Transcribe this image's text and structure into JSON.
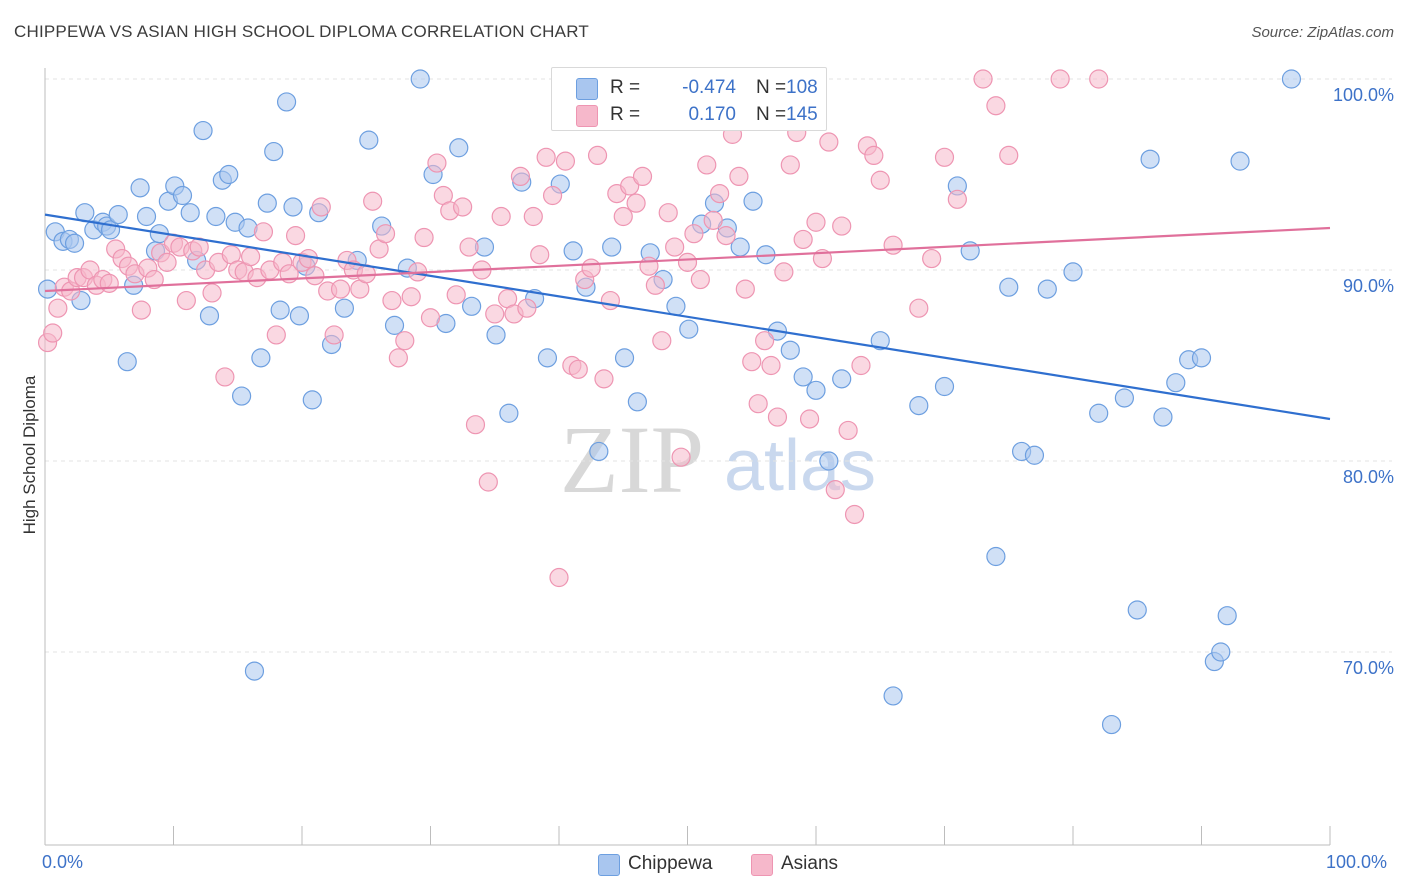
{
  "title": "CHIPPEWA VS ASIAN HIGH SCHOOL DIPLOMA CORRELATION CHART",
  "source": "Source: ZipAtlas.com",
  "watermark": {
    "zip": "ZIP",
    "atlas": "atlas"
  },
  "colors": {
    "chippewa_fill": "#a9c6ef",
    "chippewa_stroke": "#6d9fe0",
    "chippewa_line": "#2f6fcf",
    "asians_fill": "#f6b8cb",
    "asians_stroke": "#ee95b2",
    "asians_line": "#e0709b",
    "axis_label": "#3d72c8",
    "grid": "#e3e3e3"
  },
  "legend_top": [
    {
      "r_label": "R =",
      "r_value": "-0.474",
      "n_label": "N =",
      "n_value": "108"
    },
    {
      "r_label": "R =",
      "r_value": "0.170",
      "n_label": "N =",
      "n_value": "145"
    }
  ],
  "legend_bottom": [
    "Chippewa",
    "Asians"
  ],
  "chart_data": {
    "type": "scatter",
    "title": "CHIPPEWA VS ASIAN HIGH SCHOOL DIPLOMA CORRELATION CHART",
    "xlabel": "",
    "ylabel": "High School Diploma",
    "xlim": [
      0,
      100
    ],
    "ylim": [
      60,
      102
    ],
    "x_tick_labels": [
      "0.0%",
      "100.0%"
    ],
    "y_ticks": [
      70,
      80,
      90,
      100
    ],
    "y_tick_labels": [
      "70.0%",
      "80.0%",
      "90.0%",
      "100.0%"
    ],
    "grid": true,
    "legend_placement": "top-center",
    "series": [
      {
        "name": "Chippewa",
        "r": -0.474,
        "n": 108,
        "trend": {
          "x": [
            0,
            100
          ],
          "y": [
            92.9,
            82.2
          ]
        },
        "points": [
          [
            0.2,
            89
          ],
          [
            0.8,
            92
          ],
          [
            1.4,
            91.5
          ],
          [
            1.9,
            91.6
          ],
          [
            2.3,
            91.4
          ],
          [
            2.8,
            88.4
          ],
          [
            3.1,
            93
          ],
          [
            3.8,
            92.1
          ],
          [
            4.5,
            92.5
          ],
          [
            4.8,
            92.3
          ],
          [
            5.1,
            92.1
          ],
          [
            5.7,
            92.9
          ],
          [
            6.4,
            85.2
          ],
          [
            6.9,
            89.2
          ],
          [
            7.4,
            94.3
          ],
          [
            7.9,
            92.8
          ],
          [
            8.6,
            91.0
          ],
          [
            8.9,
            91.9
          ],
          [
            9.6,
            93.6
          ],
          [
            10.1,
            94.4
          ],
          [
            10.7,
            93.9
          ],
          [
            11.3,
            93.0
          ],
          [
            11.8,
            90.5
          ],
          [
            12.3,
            97.3
          ],
          [
            12.8,
            87.6
          ],
          [
            13.3,
            92.8
          ],
          [
            13.8,
            94.7
          ],
          [
            14.3,
            95.0
          ],
          [
            14.8,
            92.5
          ],
          [
            15.3,
            83.4
          ],
          [
            15.8,
            92.2
          ],
          [
            16.3,
            69.0
          ],
          [
            16.8,
            85.4
          ],
          [
            17.3,
            93.5
          ],
          [
            17.8,
            96.2
          ],
          [
            18.3,
            87.9
          ],
          [
            18.8,
            98.8
          ],
          [
            19.3,
            93.3
          ],
          [
            19.8,
            87.6
          ],
          [
            20.3,
            90.2
          ],
          [
            20.8,
            83.2
          ],
          [
            21.3,
            93.0
          ],
          [
            22.3,
            86.1
          ],
          [
            23.3,
            88.0
          ],
          [
            24.3,
            90.5
          ],
          [
            25.2,
            96.8
          ],
          [
            26.2,
            92.3
          ],
          [
            27.2,
            87.1
          ],
          [
            28.2,
            90.1
          ],
          [
            29.2,
            100.0
          ],
          [
            30.2,
            95.0
          ],
          [
            31.2,
            87.2
          ],
          [
            32.2,
            96.4
          ],
          [
            33.2,
            88.1
          ],
          [
            34.2,
            91.2
          ],
          [
            35.1,
            86.6
          ],
          [
            36.1,
            82.5
          ],
          [
            37.1,
            94.6
          ],
          [
            38.1,
            88.5
          ],
          [
            39.1,
            85.4
          ],
          [
            40.1,
            94.5
          ],
          [
            41.1,
            91.0
          ],
          [
            42.1,
            89.1
          ],
          [
            43.1,
            80.5
          ],
          [
            44.1,
            91.2
          ],
          [
            45.1,
            85.4
          ],
          [
            46.1,
            83.1
          ],
          [
            47.1,
            90.9
          ],
          [
            48.1,
            89.5
          ],
          [
            49.1,
            88.1
          ],
          [
            50.1,
            86.9
          ],
          [
            51.1,
            92.4
          ],
          [
            52.1,
            93.5
          ],
          [
            53.1,
            92.2
          ],
          [
            54.1,
            91.2
          ],
          [
            55.1,
            93.6
          ],
          [
            56.1,
            90.8
          ],
          [
            57.0,
            86.8
          ],
          [
            58.0,
            85.8
          ],
          [
            59.0,
            84.4
          ],
          [
            60.0,
            83.7
          ],
          [
            61.0,
            80.0
          ],
          [
            62.0,
            84.3
          ],
          [
            65.0,
            86.3
          ],
          [
            66.0,
            67.7
          ],
          [
            68.0,
            82.9
          ],
          [
            70.0,
            83.9
          ],
          [
            71.0,
            94.4
          ],
          [
            72.0,
            91.0
          ],
          [
            74.0,
            75.0
          ],
          [
            75.0,
            89.1
          ],
          [
            76.0,
            80.5
          ],
          [
            77.0,
            80.3
          ],
          [
            78.0,
            89.0
          ],
          [
            80.0,
            89.9
          ],
          [
            82.0,
            82.5
          ],
          [
            83.0,
            66.2
          ],
          [
            84.0,
            83.3
          ],
          [
            85.0,
            72.2
          ],
          [
            86.0,
            95.8
          ],
          [
            87.0,
            82.3
          ],
          [
            88.0,
            84.1
          ],
          [
            89.0,
            85.3
          ],
          [
            90.0,
            85.4
          ],
          [
            91.0,
            69.5
          ],
          [
            91.5,
            70.0
          ],
          [
            92.0,
            71.9
          ],
          [
            93.0,
            95.7
          ],
          [
            97.0,
            100.0
          ]
        ]
      },
      {
        "name": "Asians",
        "r": 0.17,
        "n": 145,
        "trend": {
          "x": [
            0,
            100
          ],
          "y": [
            88.9,
            92.2
          ]
        },
        "points": [
          [
            0.2,
            86.2
          ],
          [
            0.6,
            86.7
          ],
          [
            1.0,
            88.0
          ],
          [
            1.5,
            89.1
          ],
          [
            2.0,
            88.9
          ],
          [
            2.5,
            89.6
          ],
          [
            3.0,
            89.6
          ],
          [
            3.5,
            90.0
          ],
          [
            4.0,
            89.2
          ],
          [
            4.5,
            89.5
          ],
          [
            5.0,
            89.3
          ],
          [
            5.5,
            91.1
          ],
          [
            6.0,
            90.6
          ],
          [
            6.5,
            90.2
          ],
          [
            7.0,
            89.8
          ],
          [
            7.5,
            87.9
          ],
          [
            8.0,
            90.1
          ],
          [
            8.5,
            89.5
          ],
          [
            9.0,
            90.9
          ],
          [
            9.5,
            90.4
          ],
          [
            10.0,
            91.4
          ],
          [
            10.5,
            91.2
          ],
          [
            11.0,
            88.4
          ],
          [
            11.5,
            91.0
          ],
          [
            12.0,
            91.2
          ],
          [
            12.5,
            90.0
          ],
          [
            13.0,
            88.8
          ],
          [
            13.5,
            90.4
          ],
          [
            14.0,
            84.4
          ],
          [
            14.5,
            90.8
          ],
          [
            15.0,
            90.0
          ],
          [
            15.5,
            89.9
          ],
          [
            16.0,
            90.7
          ],
          [
            16.5,
            89.6
          ],
          [
            17.0,
            92.0
          ],
          [
            17.5,
            90.0
          ],
          [
            18.0,
            86.6
          ],
          [
            18.5,
            90.4
          ],
          [
            19.0,
            89.8
          ],
          [
            19.5,
            91.8
          ],
          [
            20.0,
            90.4
          ],
          [
            20.5,
            90.6
          ],
          [
            21.0,
            89.7
          ],
          [
            21.5,
            93.3
          ],
          [
            22.0,
            88.9
          ],
          [
            22.5,
            86.6
          ],
          [
            23.0,
            89.0
          ],
          [
            23.5,
            90.5
          ],
          [
            24.0,
            90.0
          ],
          [
            24.5,
            89.0
          ],
          [
            25.0,
            89.8
          ],
          [
            25.5,
            93.6
          ],
          [
            26.0,
            91.1
          ],
          [
            26.5,
            91.9
          ],
          [
            27.0,
            88.4
          ],
          [
            27.5,
            85.4
          ],
          [
            28.0,
            86.3
          ],
          [
            28.5,
            88.6
          ],
          [
            29.0,
            89.9
          ],
          [
            29.5,
            91.7
          ],
          [
            30.0,
            87.5
          ],
          [
            30.5,
            95.6
          ],
          [
            31.0,
            93.9
          ],
          [
            31.5,
            93.1
          ],
          [
            32.0,
            88.7
          ],
          [
            32.5,
            93.3
          ],
          [
            33.0,
            91.2
          ],
          [
            33.5,
            81.9
          ],
          [
            34.0,
            90.0
          ],
          [
            34.5,
            78.9
          ],
          [
            35.0,
            87.7
          ],
          [
            35.5,
            92.8
          ],
          [
            36.0,
            88.5
          ],
          [
            36.5,
            87.7
          ],
          [
            37.0,
            94.9
          ],
          [
            37.5,
            88.0
          ],
          [
            38.0,
            92.8
          ],
          [
            38.5,
            90.8
          ],
          [
            39.0,
            95.9
          ],
          [
            39.5,
            93.9
          ],
          [
            40.0,
            73.9
          ],
          [
            40.5,
            95.7
          ],
          [
            41.0,
            85.0
          ],
          [
            41.5,
            84.8
          ],
          [
            42.0,
            89.5
          ],
          [
            42.5,
            90.1
          ],
          [
            43.0,
            96.0
          ],
          [
            43.5,
            84.3
          ],
          [
            44.0,
            88.4
          ],
          [
            44.5,
            94.0
          ],
          [
            45.0,
            92.8
          ],
          [
            45.5,
            94.4
          ],
          [
            46.0,
            93.5
          ],
          [
            46.5,
            94.9
          ],
          [
            47.0,
            90.2
          ],
          [
            47.5,
            89.2
          ],
          [
            48.0,
            86.3
          ],
          [
            48.5,
            93.0
          ],
          [
            49.0,
            91.2
          ],
          [
            49.5,
            80.2
          ],
          [
            50.0,
            90.4
          ],
          [
            50.5,
            91.9
          ],
          [
            51.0,
            89.5
          ],
          [
            51.5,
            95.5
          ],
          [
            52.0,
            92.6
          ],
          [
            52.5,
            94.0
          ],
          [
            53.0,
            91.8
          ],
          [
            53.5,
            97.1
          ],
          [
            54.0,
            94.9
          ],
          [
            54.5,
            89.0
          ],
          [
            55.0,
            85.2
          ],
          [
            55.5,
            83.0
          ],
          [
            56.0,
            86.3
          ],
          [
            56.5,
            85.0
          ],
          [
            57.0,
            82.3
          ],
          [
            57.5,
            89.9
          ],
          [
            58.0,
            95.5
          ],
          [
            58.5,
            97.2
          ],
          [
            59.0,
            91.6
          ],
          [
            59.5,
            82.2
          ],
          [
            60.0,
            92.5
          ],
          [
            60.5,
            90.6
          ],
          [
            61.0,
            96.7
          ],
          [
            61.5,
            78.5
          ],
          [
            62.0,
            92.3
          ],
          [
            62.5,
            81.6
          ],
          [
            63.0,
            77.2
          ],
          [
            63.5,
            85.0
          ],
          [
            64.0,
            96.5
          ],
          [
            64.5,
            96.0
          ],
          [
            65.0,
            94.7
          ],
          [
            66.0,
            91.3
          ],
          [
            68.0,
            88.0
          ],
          [
            69.0,
            90.6
          ],
          [
            70.0,
            95.9
          ],
          [
            71.0,
            93.7
          ],
          [
            73.0,
            100.0
          ],
          [
            74.0,
            98.6
          ],
          [
            75.0,
            96.0
          ],
          [
            79.0,
            100.0
          ],
          [
            82.0,
            100.0
          ]
        ]
      }
    ]
  }
}
